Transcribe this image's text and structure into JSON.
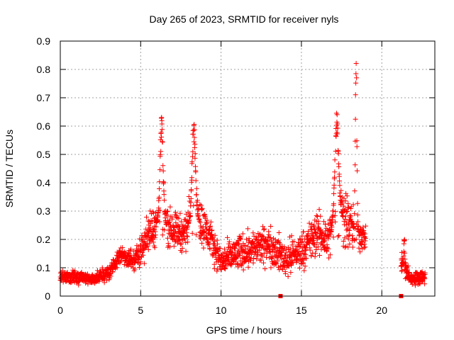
{
  "chart_data": {
    "type": "scatter",
    "title": "Day 265 of 2023, SRMTID for receiver nyls",
    "xlabel": "GPS time / hours",
    "ylabel": "SRMTID / TECUs",
    "xlim": [
      0,
      23.3
    ],
    "ylim": [
      0,
      0.9
    ],
    "x_ticks": [
      0,
      5,
      10,
      15,
      20
    ],
    "y_ticks": [
      0,
      0.1,
      0.2,
      0.3,
      0.4,
      0.5,
      0.6,
      0.7,
      0.8,
      0.9
    ],
    "x_tick_labels": [
      "0",
      "5",
      "10",
      "15",
      "20"
    ],
    "y_tick_labels": [
      "0",
      "0.1",
      "0.2",
      "0.3",
      "0.4",
      "0.5",
      "0.6",
      "0.7",
      "0.8",
      "0.9"
    ],
    "grid": true,
    "marker": "+",
    "series_color": "#ff0000",
    "envelope": [
      {
        "x": 0.0,
        "y": 0.07,
        "s": 0.018
      },
      {
        "x": 1.0,
        "y": 0.065,
        "s": 0.018
      },
      {
        "x": 2.0,
        "y": 0.06,
        "s": 0.016
      },
      {
        "x": 3.0,
        "y": 0.08,
        "s": 0.02
      },
      {
        "x": 3.8,
        "y": 0.15,
        "s": 0.025
      },
      {
        "x": 4.6,
        "y": 0.12,
        "s": 0.03
      },
      {
        "x": 5.3,
        "y": 0.2,
        "s": 0.05
      },
      {
        "x": 6.0,
        "y": 0.26,
        "s": 0.06
      },
      {
        "x": 7.0,
        "y": 0.24,
        "s": 0.05
      },
      {
        "x": 7.7,
        "y": 0.22,
        "s": 0.05
      },
      {
        "x": 8.3,
        "y": 0.3,
        "s": 0.08
      },
      {
        "x": 9.2,
        "y": 0.22,
        "s": 0.05
      },
      {
        "x": 10.0,
        "y": 0.12,
        "s": 0.04
      },
      {
        "x": 11.0,
        "y": 0.15,
        "s": 0.05
      },
      {
        "x": 12.0,
        "y": 0.17,
        "s": 0.05
      },
      {
        "x": 13.0,
        "y": 0.18,
        "s": 0.05
      },
      {
        "x": 14.0,
        "y": 0.13,
        "s": 0.05
      },
      {
        "x": 15.0,
        "y": 0.16,
        "s": 0.05
      },
      {
        "x": 16.0,
        "y": 0.22,
        "s": 0.06
      },
      {
        "x": 16.7,
        "y": 0.2,
        "s": 0.06
      },
      {
        "x": 17.3,
        "y": 0.3,
        "s": 0.1
      },
      {
        "x": 18.0,
        "y": 0.25,
        "s": 0.08
      },
      {
        "x": 18.6,
        "y": 0.22,
        "s": 0.05
      },
      {
        "x": 19.0,
        "y": 0.2,
        "s": 0.03
      }
    ],
    "segment_2_envelope": [
      {
        "x": 21.2,
        "y": 0.12,
        "s": 0.04
      },
      {
        "x": 21.8,
        "y": 0.06,
        "s": 0.015
      },
      {
        "x": 22.7,
        "y": 0.07,
        "s": 0.02
      }
    ],
    "spikes": [
      {
        "x": 6.3,
        "y": 0.64,
        "width": 0.14
      },
      {
        "x": 8.3,
        "y": 0.63,
        "width": 0.14
      },
      {
        "x": 17.2,
        "y": 0.66,
        "width": 0.16
      },
      {
        "x": 18.4,
        "y": 0.86,
        "width": 0.07
      },
      {
        "x": 21.4,
        "y": 0.22,
        "width": 0.04
      }
    ],
    "gap_markers": [
      {
        "x": 13.7,
        "y": 0.0
      },
      {
        "x": 21.2,
        "y": 0.0
      }
    ]
  }
}
